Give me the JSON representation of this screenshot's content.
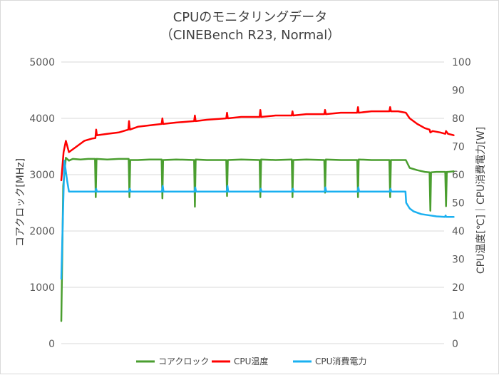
{
  "chart_data": {
    "type": "line",
    "title": "CPUのモニタリングデータ",
    "subtitle": "（CINEBench R23, Normal）",
    "ylabel_left": "コアクロック[MHz]",
    "ylabel_right": "CPU温度[℃]｜CPU消費電力[W]",
    "ylim_left": [
      0,
      5000
    ],
    "ylim_right": [
      0,
      100
    ],
    "yticks_left": [
      0,
      1000,
      2000,
      3000,
      4000,
      5000
    ],
    "yticks_right": [
      0,
      10,
      20,
      30,
      40,
      50,
      60,
      70,
      80,
      90,
      100
    ],
    "grid": true,
    "legend_position": "bottom",
    "x_range": [
      0,
      100
    ],
    "series": [
      {
        "name": "コアクロック",
        "axis": "left",
        "color": "#4a9e2f",
        "points": [
          [
            0,
            400
          ],
          [
            0.5,
            2800
          ],
          [
            1.2,
            3300
          ],
          [
            2,
            3250
          ],
          [
            3,
            3280
          ],
          [
            5,
            3270
          ],
          [
            7,
            3280
          ],
          [
            8.8,
            3280
          ],
          [
            9,
            2600
          ],
          [
            9.2,
            3280
          ],
          [
            12,
            3270
          ],
          [
            15,
            3280
          ],
          [
            17.6,
            3280
          ],
          [
            17.8,
            2600
          ],
          [
            18,
            3260
          ],
          [
            20,
            3260
          ],
          [
            23,
            3270
          ],
          [
            26.2,
            3270
          ],
          [
            26.4,
            2580
          ],
          [
            26.6,
            3260
          ],
          [
            30,
            3270
          ],
          [
            34.7,
            3260
          ],
          [
            34.9,
            2430
          ],
          [
            35.1,
            3270
          ],
          [
            38,
            3260
          ],
          [
            43.1,
            3260
          ],
          [
            43.3,
            2620
          ],
          [
            43.5,
            3260
          ],
          [
            47,
            3270
          ],
          [
            51.8,
            3260
          ],
          [
            52,
            2600
          ],
          [
            52.2,
            3270
          ],
          [
            56,
            3260
          ],
          [
            60.2,
            3270
          ],
          [
            60.4,
            2600
          ],
          [
            60.6,
            3260
          ],
          [
            64,
            3270
          ],
          [
            68.7,
            3260
          ],
          [
            68.9,
            2680
          ],
          [
            69.1,
            3270
          ],
          [
            73,
            3260
          ],
          [
            77.3,
            3260
          ],
          [
            77.5,
            2600
          ],
          [
            77.7,
            3270
          ],
          [
            81,
            3260
          ],
          [
            85.7,
            3260
          ],
          [
            85.9,
            2600
          ],
          [
            86.1,
            3260
          ],
          [
            89,
            3260
          ],
          [
            90,
            3260
          ],
          [
            91,
            3120
          ],
          [
            93,
            3080
          ],
          [
            95,
            3050
          ],
          [
            96.2,
            3040
          ],
          [
            96.4,
            2360
          ],
          [
            96.6,
            3040
          ],
          [
            98,
            3050
          ],
          [
            100,
            3050
          ],
          [
            100.3,
            3050
          ],
          [
            100.5,
            2440
          ],
          [
            100.7,
            3050
          ],
          [
            101,
            3050
          ],
          [
            102.5,
            3060
          ]
        ]
      },
      {
        "name": "CPU温度",
        "axis": "right",
        "color": "#ff0000",
        "points": [
          [
            0,
            58
          ],
          [
            0.6,
            68
          ],
          [
            1.2,
            72
          ],
          [
            2,
            68
          ],
          [
            4,
            70
          ],
          [
            6,
            72
          ],
          [
            8,
            72.8
          ],
          [
            8.9,
            73
          ],
          [
            9.1,
            76
          ],
          [
            9.3,
            74
          ],
          [
            12,
            74.5
          ],
          [
            15,
            75
          ],
          [
            17.5,
            76
          ],
          [
            17.7,
            79
          ],
          [
            17.9,
            76
          ],
          [
            20,
            77
          ],
          [
            23,
            77.5
          ],
          [
            26.2,
            78
          ],
          [
            26.4,
            80
          ],
          [
            26.6,
            78
          ],
          [
            30,
            78.5
          ],
          [
            34.7,
            79
          ],
          [
            34.9,
            81
          ],
          [
            35.1,
            79
          ],
          [
            38,
            79.5
          ],
          [
            43.1,
            80
          ],
          [
            43.3,
            82
          ],
          [
            43.5,
            80
          ],
          [
            47,
            80.5
          ],
          [
            51.8,
            80.5
          ],
          [
            52,
            83
          ],
          [
            52.2,
            80.5
          ],
          [
            56,
            81
          ],
          [
            60.2,
            81
          ],
          [
            60.4,
            82.5
          ],
          [
            60.6,
            81
          ],
          [
            64,
            81.5
          ],
          [
            68.7,
            81.5
          ],
          [
            68.9,
            83
          ],
          [
            69.1,
            81.5
          ],
          [
            73,
            82
          ],
          [
            77.3,
            82
          ],
          [
            77.5,
            84
          ],
          [
            77.7,
            82
          ],
          [
            81,
            82.5
          ],
          [
            85.7,
            82.5
          ],
          [
            85.9,
            84
          ],
          [
            86.1,
            82.5
          ],
          [
            88,
            82.5
          ],
          [
            90,
            82
          ],
          [
            91,
            80
          ],
          [
            93,
            78
          ],
          [
            95,
            76.5
          ],
          [
            96.2,
            76
          ],
          [
            96.4,
            75
          ],
          [
            97,
            75.5
          ],
          [
            99,
            75
          ],
          [
            100.3,
            74.5
          ],
          [
            100.5,
            75.5
          ],
          [
            101,
            74.5
          ],
          [
            102.5,
            74
          ]
        ]
      },
      {
        "name": "CPU消費電力",
        "axis": "right",
        "color": "#1ab0f0",
        "points": [
          [
            0,
            23
          ],
          [
            0.8,
            65
          ],
          [
            1.5,
            58
          ],
          [
            2,
            54
          ],
          [
            5,
            54
          ],
          [
            8.9,
            54
          ],
          [
            9.1,
            55
          ],
          [
            9.3,
            54
          ],
          [
            17.7,
            54
          ],
          [
            17.9,
            55
          ],
          [
            18.1,
            54
          ],
          [
            26.3,
            54
          ],
          [
            26.5,
            56
          ],
          [
            26.7,
            54
          ],
          [
            34.8,
            54
          ],
          [
            35,
            55.5
          ],
          [
            35.2,
            54
          ],
          [
            43.2,
            54
          ],
          [
            43.4,
            56
          ],
          [
            43.6,
            54
          ],
          [
            51.9,
            54
          ],
          [
            52.1,
            55
          ],
          [
            52.3,
            54
          ],
          [
            60.3,
            54
          ],
          [
            60.5,
            55
          ],
          [
            60.7,
            54
          ],
          [
            68.8,
            54
          ],
          [
            69,
            55.5
          ],
          [
            69.2,
            54
          ],
          [
            77.4,
            54
          ],
          [
            77.6,
            55.5
          ],
          [
            77.8,
            54
          ],
          [
            85.8,
            54
          ],
          [
            86,
            55
          ],
          [
            86.2,
            54
          ],
          [
            89.9,
            54
          ],
          [
            90.1,
            50
          ],
          [
            91,
            48
          ],
          [
            92,
            47
          ],
          [
            94,
            46
          ],
          [
            96.5,
            45.5
          ],
          [
            98,
            45.2
          ],
          [
            100.2,
            45
          ],
          [
            100.4,
            45.5
          ],
          [
            100.6,
            45
          ],
          [
            102.5,
            45
          ]
        ]
      }
    ]
  }
}
